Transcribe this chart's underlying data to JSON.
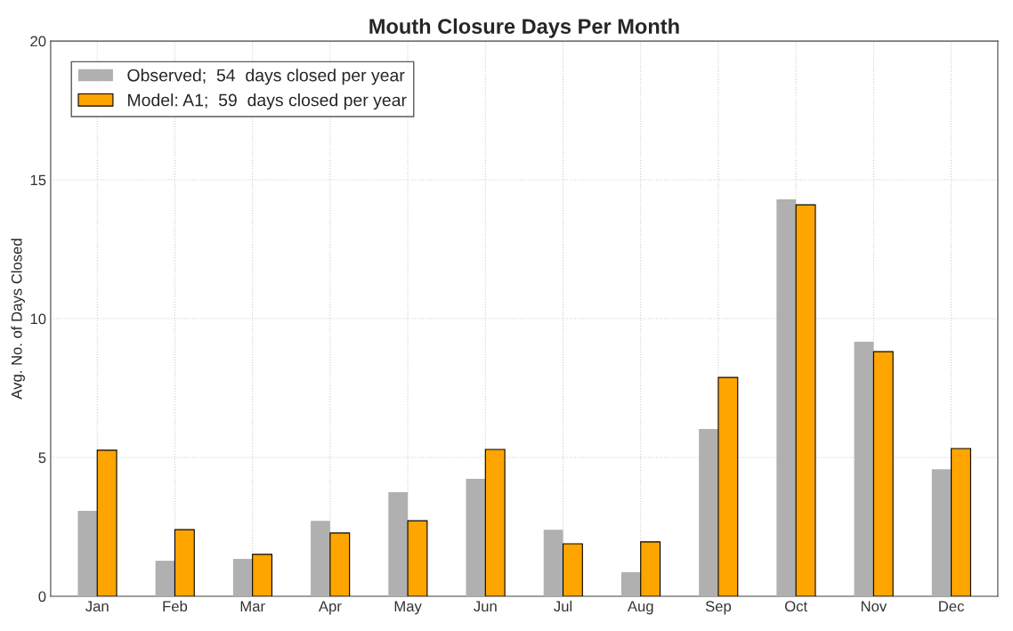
{
  "chart_data": {
    "type": "bar",
    "title": "Mouth Closure Days Per Month",
    "ylabel": "Avg. No. of Days Closed",
    "categories": [
      "Jan",
      "Feb",
      "Mar",
      "Apr",
      "May",
      "Jun",
      "Jul",
      "Aug",
      "Sep",
      "Oct",
      "Nov",
      "Dec"
    ],
    "series": [
      {
        "name": "Observed;  54  days closed per year",
        "color": "#b0b0b0",
        "values": [
          3.08,
          1.28,
          1.35,
          2.72,
          3.75,
          4.23,
          2.4,
          0.87,
          6.03,
          14.3,
          9.17,
          4.58
        ]
      },
      {
        "name": "Model: A1;  59  days closed per year",
        "color": "#ffa500",
        "values": [
          5.26,
          2.4,
          1.51,
          2.28,
          2.72,
          5.29,
          1.89,
          1.96,
          7.88,
          14.1,
          8.81,
          5.32
        ]
      }
    ],
    "ylim": [
      0,
      20
    ],
    "yticks": [
      0,
      5,
      10,
      15,
      20
    ],
    "grid": true,
    "legend": "top left"
  }
}
